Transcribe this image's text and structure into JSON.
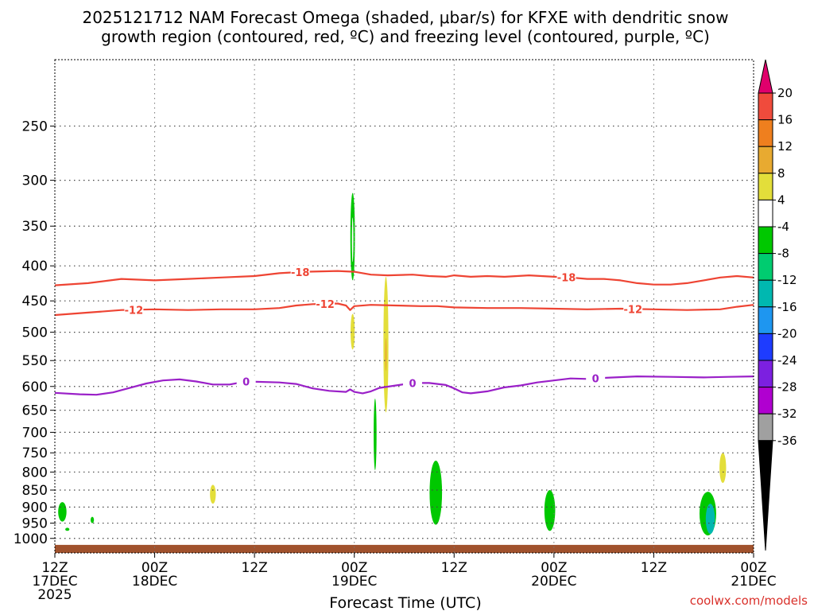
{
  "chart_data": {
    "type": "time-height cross section",
    "title_lines": [
      "2025121712 NAM Forecast Omega (shaded, μbar/s) for KFXE with dendritic snow",
      "growth region (contoured, red, ºC) and freezing level (contoured, purple, ºC)"
    ],
    "xlabel": "Forecast Time (UTC)",
    "credit": "coolwx.com/models",
    "x_range_hours": [
      0,
      84
    ],
    "x_ticks": [
      {
        "h": 0,
        "lines": [
          "12Z",
          "17DEC",
          "2025"
        ]
      },
      {
        "h": 12,
        "lines": [
          "00Z",
          "18DEC"
        ]
      },
      {
        "h": 24,
        "lines": [
          "12Z"
        ]
      },
      {
        "h": 36,
        "lines": [
          "00Z",
          "19DEC"
        ]
      },
      {
        "h": 48,
        "lines": [
          "12Z"
        ]
      },
      {
        "h": 60,
        "lines": [
          "00Z",
          "20DEC"
        ]
      },
      {
        "h": 72,
        "lines": [
          "12Z"
        ]
      },
      {
        "h": 84,
        "lines": [
          "00Z",
          "21DEC"
        ]
      }
    ],
    "y_axis": {
      "scale": "log-pressure",
      "top_hpa": 200,
      "bottom_hpa": 1050,
      "ticks": [
        250,
        300,
        350,
        400,
        450,
        500,
        550,
        600,
        650,
        700,
        750,
        800,
        850,
        900,
        950,
        1000
      ]
    },
    "contours": [
      {
        "name": "-18 °C isotherm",
        "label": "-18",
        "color": "#ee4433",
        "label_at_h": [
          29.5,
          61.5
        ],
        "points": [
          [
            0,
            427
          ],
          [
            4,
            424
          ],
          [
            8,
            418
          ],
          [
            12,
            420
          ],
          [
            16,
            418
          ],
          [
            20,
            416
          ],
          [
            24,
            414
          ],
          [
            27,
            410
          ],
          [
            30,
            408
          ],
          [
            34,
            407
          ],
          [
            36,
            408
          ],
          [
            38,
            412
          ],
          [
            40,
            413
          ],
          [
            43,
            412
          ],
          [
            45,
            414
          ],
          [
            47,
            415
          ],
          [
            48,
            413
          ],
          [
            50,
            415
          ],
          [
            52,
            414
          ],
          [
            54,
            415
          ],
          [
            57,
            413
          ],
          [
            60,
            415
          ],
          [
            62,
            416
          ],
          [
            64,
            418
          ],
          [
            66,
            418
          ],
          [
            68,
            420
          ],
          [
            70,
            424
          ],
          [
            72,
            426
          ],
          [
            74,
            426
          ],
          [
            76,
            424
          ],
          [
            78,
            420
          ],
          [
            80,
            416
          ],
          [
            82,
            414
          ],
          [
            84,
            416
          ]
        ]
      },
      {
        "name": "-12 °C isotherm",
        "label": "-12",
        "color": "#ee4433",
        "label_at_h": [
          9.5,
          32.5,
          69.5
        ],
        "points": [
          [
            0,
            472
          ],
          [
            4,
            468
          ],
          [
            8,
            464
          ],
          [
            12,
            463
          ],
          [
            16,
            464
          ],
          [
            20,
            463
          ],
          [
            24,
            463
          ],
          [
            27,
            461
          ],
          [
            29,
            457
          ],
          [
            31,
            455
          ],
          [
            34,
            454
          ],
          [
            35,
            457
          ],
          [
            35.5,
            464
          ],
          [
            36,
            458
          ],
          [
            38,
            456
          ],
          [
            41,
            457
          ],
          [
            44,
            458
          ],
          [
            46,
            458
          ],
          [
            48,
            460
          ],
          [
            52,
            461
          ],
          [
            56,
            461
          ],
          [
            60,
            462
          ],
          [
            64,
            463
          ],
          [
            68,
            462
          ],
          [
            72,
            463
          ],
          [
            76,
            464
          ],
          [
            80,
            463
          ],
          [
            82,
            459
          ],
          [
            84,
            456
          ]
        ]
      },
      {
        "name": "0 °C freezing level",
        "label": "0",
        "color": "#9a20c8",
        "label_at_h": [
          23,
          43,
          65
        ],
        "points": [
          [
            0,
            613
          ],
          [
            3,
            616
          ],
          [
            5,
            617
          ],
          [
            7,
            612
          ],
          [
            9,
            603
          ],
          [
            11,
            594
          ],
          [
            13,
            588
          ],
          [
            15,
            586
          ],
          [
            17,
            590
          ],
          [
            19,
            596
          ],
          [
            21,
            596
          ],
          [
            23,
            590
          ],
          [
            27,
            592
          ],
          [
            29,
            595
          ],
          [
            31,
            604
          ],
          [
            33,
            609
          ],
          [
            35,
            611
          ],
          [
            35.5,
            606
          ],
          [
            36,
            611
          ],
          [
            37,
            614
          ],
          [
            38,
            610
          ],
          [
            39,
            603
          ],
          [
            41,
            598
          ],
          [
            43,
            593
          ],
          [
            45,
            593
          ],
          [
            47,
            597
          ],
          [
            48,
            604
          ],
          [
            49,
            612
          ],
          [
            50,
            614
          ],
          [
            52,
            610
          ],
          [
            54,
            602
          ],
          [
            56,
            598
          ],
          [
            58,
            592
          ],
          [
            60,
            588
          ],
          [
            62,
            584
          ],
          [
            64,
            585
          ],
          [
            66,
            583
          ],
          [
            70,
            580
          ],
          [
            74,
            581
          ],
          [
            78,
            582
          ],
          [
            81,
            581
          ],
          [
            84,
            580
          ]
        ]
      }
    ],
    "omega_features": [
      {
        "h": 35.8,
        "p_top": 313,
        "p_bot": 420,
        "w": 0.55,
        "color": "#00c800"
      },
      {
        "h": 35.8,
        "p_top": 340,
        "p_bot": 395,
        "w": 0.18,
        "color": "#ffffff"
      },
      {
        "h": 35.8,
        "p_top": 470,
        "p_bot": 530,
        "w": 0.5,
        "color": "#e3de3a"
      },
      {
        "h": 39.8,
        "p_top": 415,
        "p_bot": 655,
        "w": 0.6,
        "color": "#e3de3a"
      },
      {
        "h": 39.8,
        "p_top": 510,
        "p_bot": 570,
        "w": 0.2,
        "color": "#e8b030"
      },
      {
        "h": 38.5,
        "p_top": 625,
        "p_bot": 795,
        "w": 0.35,
        "color": "#00c800"
      },
      {
        "h": 45.8,
        "p_top": 770,
        "p_bot": 955,
        "w": 1.5,
        "color": "#00c800"
      },
      {
        "h": 59.5,
        "p_top": 850,
        "p_bot": 975,
        "w": 1.3,
        "color": "#00c800"
      },
      {
        "h": 78.5,
        "p_top": 855,
        "p_bot": 990,
        "w": 2.0,
        "color": "#00c800"
      },
      {
        "h": 78.8,
        "p_top": 890,
        "p_bot": 985,
        "w": 1.1,
        "color": "#00b8b0"
      },
      {
        "h": 80.3,
        "p_top": 750,
        "p_bot": 830,
        "w": 0.8,
        "color": "#e3de3a"
      },
      {
        "h": 19.0,
        "p_top": 835,
        "p_bot": 890,
        "w": 0.7,
        "color": "#e3de3a"
      },
      {
        "h": 0.9,
        "p_top": 885,
        "p_bot": 945,
        "w": 1.0,
        "color": "#00c800"
      },
      {
        "h": 4.5,
        "p_top": 930,
        "p_bot": 950,
        "w": 0.4,
        "color": "#00c800"
      },
      {
        "h": 1.5,
        "p_top": 965,
        "p_bot": 975,
        "w": 0.5,
        "color": "#00c800"
      }
    ],
    "ground": {
      "p_top": 1022,
      "color": "#a0522d"
    },
    "colorbar": {
      "labels": [
        "20",
        "16",
        "12",
        "8",
        "4",
        "-4",
        "-8",
        "-12",
        "-16",
        "-20",
        "-24",
        "-28",
        "-32",
        "-36"
      ],
      "colors": [
        "#e0006c",
        "#f04b3c",
        "#ef7f1e",
        "#e8aa30",
        "#e3de3a",
        "#ffffff",
        "#00c800",
        "#00cc70",
        "#00b8b0",
        "#1e96f0",
        "#1e3cff",
        "#7c20e0",
        "#b000d0",
        "#a0a0a0",
        "#000000"
      ]
    }
  }
}
